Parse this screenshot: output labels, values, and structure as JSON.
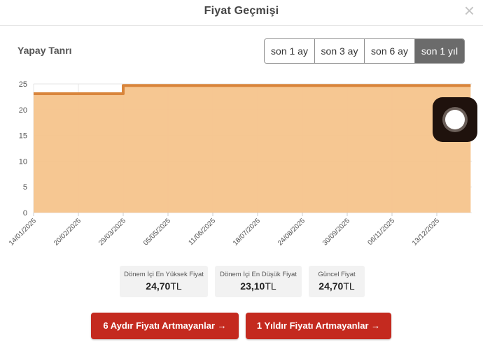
{
  "modal": {
    "title": "Fiyat Geçmişi",
    "close_glyph": "×"
  },
  "product_name": "Yapay Tanrı",
  "periods": [
    {
      "label": "son 1 ay",
      "active": false
    },
    {
      "label": "son 3 ay",
      "active": false
    },
    {
      "label": "son 6 ay",
      "active": false
    },
    {
      "label": "son 1 yıl",
      "active": true
    }
  ],
  "stats": [
    {
      "label": "Dönem İçi En Yüksek Fiyat",
      "value": "24,70",
      "currency": "TL"
    },
    {
      "label": "Dönem İçi En Düşük Fiyat",
      "value": "23,10",
      "currency": "TL"
    },
    {
      "label": "Güncel Fiyat",
      "value": "24,70",
      "currency": "TL"
    }
  ],
  "buttons": {
    "six_months": "6 Aydır Fiyatı Artmayanlar →",
    "one_year": "1 Yıldır Fiyatı Artmayanlar →"
  },
  "colors": {
    "fill": "#f5c48c",
    "line": "#d9853b",
    "button": "#c42a1f",
    "active_period": "#6b6b6b"
  },
  "icons": {
    "close": "close-icon",
    "assistive": "assistive-touch-icon"
  },
  "chart_data": {
    "type": "area",
    "x_ticks": [
      "14/01/2025",
      "20/02/2025",
      "29/03/2025",
      "05/05/2025",
      "11/06/2025",
      "18/07/2025",
      "24/08/2025",
      "30/09/2025",
      "06/11/2025",
      "13/12/2025"
    ],
    "y_ticks": [
      0,
      5,
      10,
      15,
      20,
      25
    ],
    "ylim": [
      0,
      25
    ],
    "grid": true,
    "series": [
      {
        "x": [
          "14/01/2025",
          "29/03/2025",
          "29/03/2025",
          "10/01/2026"
        ],
        "y": [
          23.1,
          23.1,
          24.7,
          24.7
        ]
      }
    ]
  }
}
